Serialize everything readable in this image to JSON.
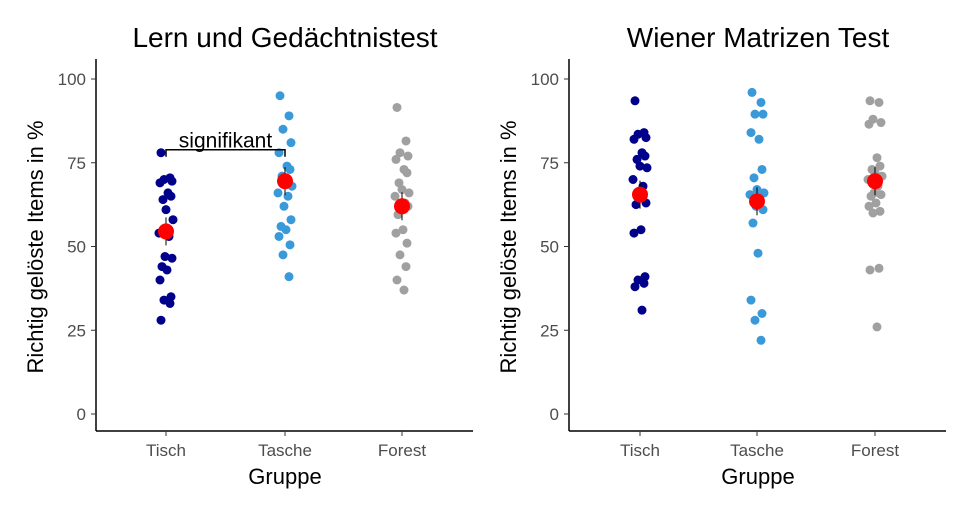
{
  "chart_data": [
    {
      "type": "scatter",
      "title": "Lern und Gedächtnistest",
      "xlabel": "Gruppe",
      "ylabel": "Richtig gelöste Items in %",
      "categories": [
        "Tisch",
        "Tasche",
        "Forest"
      ],
      "ylim": [
        0,
        100
      ],
      "yticks": [
        0,
        25,
        50,
        75,
        100
      ],
      "grid": false,
      "group_colors": {
        "Tisch": "#00008b",
        "Tasche": "#3a9ad9",
        "Forest": "#a0a0a0"
      },
      "mean_color": "#ff0000",
      "series": [
        {
          "category": "Tisch",
          "values": [
            78,
            70.5,
            70,
            69.5,
            69,
            66,
            65,
            64,
            61,
            58,
            54,
            53,
            47,
            46.5,
            44,
            43,
            40,
            35,
            34,
            33,
            28
          ]
        },
        {
          "category": "Tasche",
          "values": [
            95,
            89,
            85,
            81,
            78,
            74,
            73,
            71,
            70,
            68,
            66,
            65,
            62,
            58,
            56,
            55,
            53,
            50.5,
            47.5,
            41
          ]
        },
        {
          "category": "Forest",
          "values": [
            91.5,
            81.5,
            78,
            77,
            76,
            73,
            72,
            69,
            67,
            66,
            65,
            63,
            62.5,
            62,
            59.5,
            55,
            54,
            51,
            47.5,
            44,
            40,
            37
          ]
        }
      ],
      "means": [
        {
          "category": "Tisch",
          "value": 54.5
        },
        {
          "category": "Tasche",
          "value": 69.5
        },
        {
          "category": "Forest",
          "value": 62
        }
      ],
      "significance": {
        "from": "Tisch",
        "to": "Tasche",
        "y": 78,
        "label": "signifikant"
      }
    },
    {
      "type": "scatter",
      "title": "Wiener Matrizen Test",
      "xlabel": "Gruppe",
      "ylabel": "Richtig gelöste Items in %",
      "categories": [
        "Tisch",
        "Tasche",
        "Forest"
      ],
      "ylim": [
        0,
        100
      ],
      "yticks": [
        0,
        25,
        50,
        75,
        100
      ],
      "grid": false,
      "group_colors": {
        "Tisch": "#00008b",
        "Tasche": "#3a9ad9",
        "Forest": "#a0a0a0"
      },
      "mean_color": "#ff0000",
      "series": [
        {
          "category": "Tisch",
          "values": [
            93.5,
            84,
            83.5,
            82.5,
            82,
            78,
            77,
            76,
            74,
            73.5,
            70,
            68,
            65,
            63,
            62.5,
            55,
            54,
            41,
            40,
            39,
            38,
            31
          ]
        },
        {
          "category": "Tasche",
          "values": [
            96,
            93,
            89.5,
            89.5,
            84,
            82,
            73,
            70.5,
            67,
            66,
            65.5,
            64,
            62,
            61,
            57,
            48,
            34,
            30,
            28,
            22
          ]
        },
        {
          "category": "Forest",
          "values": [
            93.5,
            93,
            88,
            87,
            86.5,
            76.5,
            74,
            73,
            72,
            71,
            70,
            68,
            66,
            65.5,
            65,
            63,
            62,
            60.5,
            60,
            43.5,
            43,
            26
          ]
        }
      ],
      "means": [
        {
          "category": "Tisch",
          "value": 65.5
        },
        {
          "category": "Tasche",
          "value": 63.5
        },
        {
          "category": "Forest",
          "value": 69.5
        }
      ]
    }
  ]
}
